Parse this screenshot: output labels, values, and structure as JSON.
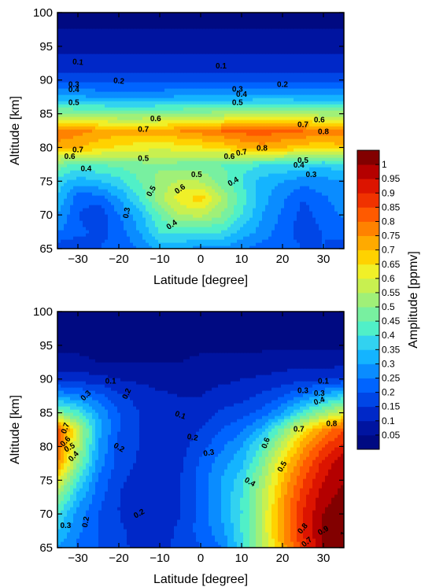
{
  "chart_data": [
    {
      "type": "heatmap",
      "panel": "top",
      "xlabel": "Latitude [degree]",
      "ylabel": "Altitude [km]",
      "xlim": [
        -35,
        35
      ],
      "ylim": [
        65,
        100
      ],
      "xticks": [
        -30,
        -20,
        -10,
        0,
        10,
        20,
        30
      ],
      "yticks": [
        65,
        70,
        75,
        80,
        85,
        90,
        95,
        100
      ],
      "x": [
        -35,
        -30,
        -25,
        -20,
        -15,
        -10,
        -5,
        0,
        5,
        10,
        15,
        20,
        25,
        30,
        35
      ],
      "y": [
        65,
        67.5,
        70,
        72.5,
        75,
        77.5,
        80,
        82.5,
        85,
        87.5,
        90,
        92.5,
        95,
        97.5,
        100
      ],
      "z": [
        [
          0.16,
          0.15,
          0.2,
          0.22,
          0.25,
          0.33,
          0.3,
          0.28,
          0.28,
          0.26,
          0.22,
          0.22,
          0.2,
          0.2,
          0.18
        ],
        [
          0.25,
          0.22,
          0.18,
          0.22,
          0.3,
          0.4,
          0.42,
          0.4,
          0.4,
          0.33,
          0.28,
          0.22,
          0.18,
          0.2,
          0.22
        ],
        [
          0.3,
          0.2,
          0.16,
          0.25,
          0.33,
          0.45,
          0.55,
          0.56,
          0.5,
          0.4,
          0.3,
          0.24,
          0.18,
          0.22,
          0.26
        ],
        [
          0.35,
          0.22,
          0.22,
          0.3,
          0.4,
          0.53,
          0.63,
          0.68,
          0.55,
          0.43,
          0.32,
          0.26,
          0.2,
          0.24,
          0.28
        ],
        [
          0.38,
          0.32,
          0.34,
          0.38,
          0.45,
          0.52,
          0.56,
          0.55,
          0.48,
          0.4,
          0.33,
          0.3,
          0.27,
          0.28,
          0.3
        ],
        [
          0.48,
          0.43,
          0.45,
          0.46,
          0.48,
          0.49,
          0.48,
          0.47,
          0.45,
          0.42,
          0.4,
          0.4,
          0.38,
          0.36,
          0.38
        ],
        [
          0.72,
          0.7,
          0.67,
          0.64,
          0.62,
          0.61,
          0.62,
          0.64,
          0.66,
          0.7,
          0.73,
          0.7,
          0.67,
          0.66,
          0.68
        ],
        [
          0.8,
          0.77,
          0.74,
          0.72,
          0.72,
          0.73,
          0.75,
          0.77,
          0.8,
          0.82,
          0.83,
          0.81,
          0.8,
          0.79,
          0.78
        ],
        [
          0.52,
          0.51,
          0.5,
          0.49,
          0.49,
          0.5,
          0.51,
          0.52,
          0.53,
          0.54,
          0.55,
          0.55,
          0.54,
          0.53,
          0.53
        ],
        [
          0.31,
          0.31,
          0.3,
          0.3,
          0.3,
          0.3,
          0.31,
          0.31,
          0.32,
          0.32,
          0.32,
          0.32,
          0.32,
          0.31,
          0.31
        ],
        [
          0.18,
          0.18,
          0.18,
          0.18,
          0.18,
          0.18,
          0.18,
          0.18,
          0.18,
          0.18,
          0.18,
          0.18,
          0.18,
          0.18,
          0.18
        ],
        [
          0.11,
          0.11,
          0.11,
          0.11,
          0.11,
          0.11,
          0.11,
          0.11,
          0.11,
          0.11,
          0.11,
          0.11,
          0.11,
          0.11,
          0.11
        ],
        [
          0.09,
          0.09,
          0.09,
          0.09,
          0.09,
          0.09,
          0.09,
          0.09,
          0.09,
          0.09,
          0.09,
          0.09,
          0.09,
          0.09,
          0.09
        ],
        [
          0.05,
          0.05,
          0.05,
          0.05,
          0.05,
          0.05,
          0.05,
          0.05,
          0.05,
          0.05,
          0.05,
          0.05,
          0.05,
          0.05,
          0.05
        ],
        [
          0.03,
          0.03,
          0.03,
          0.03,
          0.03,
          0.03,
          0.03,
          0.03,
          0.03,
          0.03,
          0.03,
          0.03,
          0.03,
          0.03,
          0.03
        ]
      ],
      "contour_labels": [
        {
          "text": "0.1",
          "x": -30,
          "y": 92.6,
          "angle": 5
        },
        {
          "text": "0.1",
          "x": 5,
          "y": 92,
          "angle": 0
        },
        {
          "text": "0.2",
          "x": -20,
          "y": 89.8,
          "angle": 5
        },
        {
          "text": "0.2",
          "x": 20,
          "y": 89.3,
          "angle": 0
        },
        {
          "text": "0.3",
          "x": -31,
          "y": 89.3,
          "angle": 0
        },
        {
          "text": "0.4",
          "x": -31,
          "y": 88.5,
          "angle": 0
        },
        {
          "text": "0.5",
          "x": -31,
          "y": 86.6,
          "angle": 0
        },
        {
          "text": "0.3",
          "x": 9,
          "y": 88.6,
          "angle": 0
        },
        {
          "text": "0.4",
          "x": 10,
          "y": 87.8,
          "angle": 0
        },
        {
          "text": "0.5",
          "x": 9,
          "y": 86.6,
          "angle": 0
        },
        {
          "text": "0.6",
          "x": -11,
          "y": 84.2,
          "angle": 0
        },
        {
          "text": "0.7",
          "x": -14,
          "y": 82.6,
          "angle": 0
        },
        {
          "text": "0.6",
          "x": 29,
          "y": 84.0,
          "angle": 0
        },
        {
          "text": "0.7",
          "x": 25,
          "y": 83.3,
          "angle": 0
        },
        {
          "text": "0.8",
          "x": 30,
          "y": 82.3,
          "angle": 0
        },
        {
          "text": "0.7",
          "x": -30,
          "y": 79.6,
          "angle": 0
        },
        {
          "text": "0.6",
          "x": -32,
          "y": 78.6,
          "angle": 0
        },
        {
          "text": "0.4",
          "x": -28,
          "y": 76.8,
          "angle": 0
        },
        {
          "text": "0.5",
          "x": -14,
          "y": 78.3,
          "angle": 0
        },
        {
          "text": "0.7",
          "x": 10,
          "y": 79.2,
          "angle": -10
        },
        {
          "text": "0.6",
          "x": 7,
          "y": 78.6,
          "angle": 0
        },
        {
          "text": "0.8",
          "x": 15,
          "y": 79.8,
          "angle": 0
        },
        {
          "text": "0.5",
          "x": 25,
          "y": 78.0,
          "angle": 0
        },
        {
          "text": "0.4",
          "x": 24,
          "y": 77.3,
          "angle": 0
        },
        {
          "text": "0.3",
          "x": 27,
          "y": 75.9,
          "angle": 0
        },
        {
          "text": "0.5",
          "x": -1,
          "y": 75.9,
          "angle": 0
        },
        {
          "text": "0.4",
          "x": 8,
          "y": 74.9,
          "angle": -30
        },
        {
          "text": "0.6",
          "x": -5,
          "y": 73.8,
          "angle": -35
        },
        {
          "text": "0.5",
          "x": -12,
          "y": 73.5,
          "angle": -60
        },
        {
          "text": "0.3",
          "x": -18,
          "y": 70.3,
          "angle": -80
        },
        {
          "text": "0.4",
          "x": -7,
          "y": 68.5,
          "angle": -35
        }
      ]
    },
    {
      "type": "heatmap",
      "panel": "bottom",
      "xlabel": "Latitude [degree]",
      "ylabel": "Altitude [km]",
      "xlim": [
        -35,
        35
      ],
      "ylim": [
        65,
        100
      ],
      "xticks": [
        -30,
        -20,
        -10,
        0,
        10,
        20,
        30
      ],
      "yticks": [
        65,
        70,
        75,
        80,
        85,
        90,
        95,
        100
      ],
      "x": [
        -35,
        -30,
        -25,
        -20,
        -15,
        -10,
        -5,
        0,
        5,
        10,
        15,
        20,
        25,
        30,
        35
      ],
      "y": [
        65,
        67.5,
        70,
        72.5,
        75,
        77.5,
        80,
        82.5,
        85,
        87.5,
        90,
        92.5,
        95,
        97.5,
        100
      ],
      "z": [
        [
          0.3,
          0.24,
          0.2,
          0.16,
          0.14,
          0.14,
          0.16,
          0.2,
          0.25,
          0.38,
          0.55,
          0.72,
          0.88,
          1.0,
          1.05
        ],
        [
          0.35,
          0.26,
          0.2,
          0.16,
          0.13,
          0.13,
          0.16,
          0.22,
          0.28,
          0.4,
          0.56,
          0.74,
          0.9,
          1.0,
          1.05
        ],
        [
          0.4,
          0.28,
          0.2,
          0.15,
          0.12,
          0.12,
          0.15,
          0.22,
          0.3,
          0.4,
          0.56,
          0.74,
          0.9,
          1.0,
          1.05
        ],
        [
          0.5,
          0.33,
          0.22,
          0.15,
          0.12,
          0.11,
          0.15,
          0.22,
          0.3,
          0.4,
          0.55,
          0.73,
          0.88,
          0.98,
          1.02
        ],
        [
          0.62,
          0.4,
          0.24,
          0.16,
          0.13,
          0.11,
          0.15,
          0.22,
          0.3,
          0.38,
          0.52,
          0.7,
          0.85,
          0.95,
          1.0
        ],
        [
          0.75,
          0.5,
          0.28,
          0.18,
          0.14,
          0.11,
          0.14,
          0.21,
          0.28,
          0.34,
          0.48,
          0.66,
          0.8,
          0.92,
          1.0
        ],
        [
          0.82,
          0.55,
          0.3,
          0.18,
          0.15,
          0.11,
          0.13,
          0.18,
          0.24,
          0.3,
          0.42,
          0.58,
          0.74,
          0.85,
          0.92
        ],
        [
          0.85,
          0.58,
          0.32,
          0.2,
          0.15,
          0.12,
          0.12,
          0.15,
          0.2,
          0.24,
          0.32,
          0.48,
          0.64,
          0.76,
          0.85
        ],
        [
          0.5,
          0.42,
          0.3,
          0.2,
          0.15,
          0.12,
          0.11,
          0.12,
          0.16,
          0.18,
          0.22,
          0.3,
          0.42,
          0.52,
          0.6
        ],
        [
          0.3,
          0.26,
          0.22,
          0.16,
          0.13,
          0.11,
          0.1,
          0.1,
          0.12,
          0.13,
          0.16,
          0.2,
          0.26,
          0.32,
          0.38
        ],
        [
          0.14,
          0.13,
          0.12,
          0.1,
          0.09,
          0.08,
          0.08,
          0.08,
          0.09,
          0.1,
          0.11,
          0.12,
          0.14,
          0.15,
          0.16
        ],
        [
          0.06,
          0.06,
          0.05,
          0.05,
          0.05,
          0.05,
          0.05,
          0.06,
          0.06,
          0.07,
          0.07,
          0.08,
          0.08,
          0.08,
          0.08
        ],
        [
          0.04,
          0.04,
          0.04,
          0.04,
          0.04,
          0.04,
          0.04,
          0.04,
          0.04,
          0.04,
          0.04,
          0.04,
          0.04,
          0.04,
          0.04
        ],
        [
          0.03,
          0.03,
          0.03,
          0.03,
          0.03,
          0.03,
          0.03,
          0.03,
          0.03,
          0.03,
          0.03,
          0.03,
          0.03,
          0.03,
          0.03
        ],
        [
          0.03,
          0.03,
          0.03,
          0.03,
          0.03,
          0.03,
          0.03,
          0.03,
          0.03,
          0.03,
          0.03,
          0.03,
          0.03,
          0.03,
          0.03
        ]
      ],
      "contour_labels": [
        {
          "text": "0.1",
          "x": -22,
          "y": 89.6,
          "angle": 0
        },
        {
          "text": "0.1",
          "x": 30,
          "y": 89.6,
          "angle": 0
        },
        {
          "text": "0.3",
          "x": -28,
          "y": 87.5,
          "angle": -45
        },
        {
          "text": "0.2",
          "x": -18,
          "y": 87.8,
          "angle": -65
        },
        {
          "text": "0.3",
          "x": 25,
          "y": 88.2,
          "angle": 0
        },
        {
          "text": "0.3",
          "x": 29,
          "y": 87.8,
          "angle": 0
        },
        {
          "text": "0.4",
          "x": 29,
          "y": 86.7,
          "angle": -20
        },
        {
          "text": "0.1",
          "x": -5,
          "y": 84.6,
          "angle": 20
        },
        {
          "text": "0.7",
          "x": -33,
          "y": 82.7,
          "angle": -70
        },
        {
          "text": "0.6",
          "x": -33,
          "y": 80.7,
          "angle": -45
        },
        {
          "text": "0.5",
          "x": -32,
          "y": 79.8,
          "angle": -30
        },
        {
          "text": "0.4",
          "x": -31,
          "y": 78.5,
          "angle": -45
        },
        {
          "text": "0.2",
          "x": -20,
          "y": 79.8,
          "angle": 30
        },
        {
          "text": "0.2",
          "x": -2,
          "y": 81.3,
          "angle": 10
        },
        {
          "text": "0.3",
          "x": 2,
          "y": 79.0,
          "angle": -10
        },
        {
          "text": "0.7",
          "x": 24,
          "y": 82.5,
          "angle": 0
        },
        {
          "text": "0.8",
          "x": 32,
          "y": 83.3,
          "angle": 0
        },
        {
          "text": "0.6",
          "x": 16,
          "y": 80.5,
          "angle": -70
        },
        {
          "text": "0.5",
          "x": 20,
          "y": 77.0,
          "angle": -60
        },
        {
          "text": "0.4",
          "x": 12,
          "y": 74.7,
          "angle": 30
        },
        {
          "text": "0.2",
          "x": -15,
          "y": 70.0,
          "angle": -30
        },
        {
          "text": "0.3",
          "x": -33,
          "y": 68.2,
          "angle": 0
        },
        {
          "text": "0.2",
          "x": -28,
          "y": 68.8,
          "angle": -80
        },
        {
          "text": "0.8",
          "x": 25,
          "y": 67.8,
          "angle": -50
        },
        {
          "text": "0.9",
          "x": 30,
          "y": 67.5,
          "angle": -30
        },
        {
          "text": "0.7",
          "x": 26,
          "y": 65.8,
          "angle": -40
        },
        {
          "text": "1",
          "x": 35,
          "y": 67.0,
          "angle": -60
        }
      ]
    }
  ],
  "colorbar": {
    "label": "Amplitude [ppmv]",
    "levels": [
      0,
      0.05,
      0.1,
      0.15,
      0.2,
      0.25,
      0.3,
      0.35,
      0.4,
      0.45,
      0.5,
      0.55,
      0.6,
      0.65,
      0.7,
      0.75,
      0.8,
      0.85,
      0.9,
      0.95,
      1,
      1.05
    ],
    "tick_labels": [
      "0.05",
      "0.1",
      "0.15",
      "0.2",
      "0.25",
      "0.3",
      "0.35",
      "0.4",
      "0.45",
      "0.5",
      "0.55",
      "0.6",
      "0.65",
      "0.7",
      "0.75",
      "0.8",
      "0.85",
      "0.9",
      "0.95",
      "1"
    ],
    "colors": [
      "#000a82",
      "#0014a0",
      "#0028c8",
      "#0046e6",
      "#0064ff",
      "#0a8cff",
      "#14b4ff",
      "#32d2f0",
      "#50f0c8",
      "#78f0a0",
      "#a0f078",
      "#c8f050",
      "#f0f028",
      "#ffd200",
      "#ffaa00",
      "#ff8200",
      "#ff5a00",
      "#f03200",
      "#dc1400",
      "#b40000",
      "#820000"
    ]
  }
}
